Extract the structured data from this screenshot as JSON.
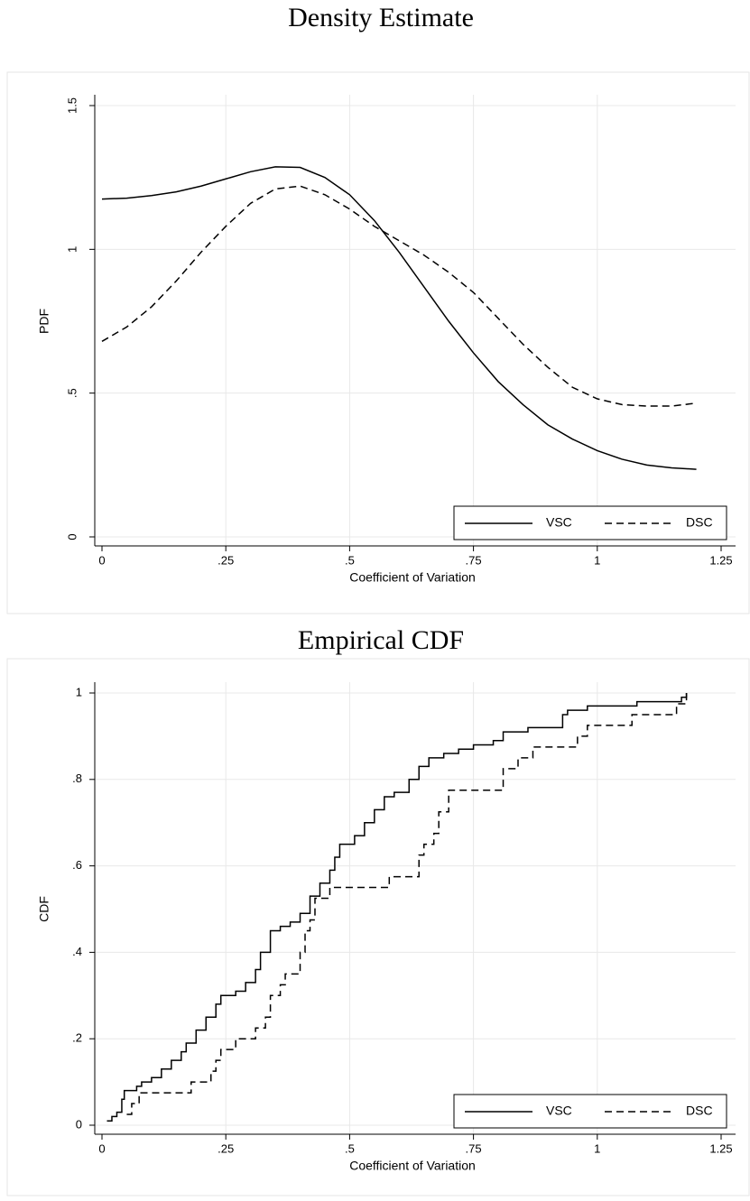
{
  "chart_data": [
    {
      "type": "line",
      "title": "Density Estimate",
      "x_label": "Coefficient of Variation",
      "y_label": "PDF",
      "x": [
        0,
        0.05,
        0.1,
        0.15,
        0.2,
        0.25,
        0.3,
        0.35,
        0.4,
        0.45,
        0.5,
        0.55,
        0.6,
        0.65,
        0.7,
        0.75,
        0.8,
        0.85,
        0.9,
        0.95,
        1.0,
        1.05,
        1.1,
        1.15,
        1.2
      ],
      "series": [
        {
          "name": "VSC",
          "color": "#000000",
          "line_style": "solid",
          "values": [
            1.175,
            1.178,
            1.187,
            1.2,
            1.22,
            1.245,
            1.27,
            1.287,
            1.285,
            1.25,
            1.19,
            1.1,
            0.99,
            0.87,
            0.75,
            0.64,
            0.54,
            0.46,
            0.39,
            0.34,
            0.3,
            0.27,
            0.25,
            0.24,
            0.235
          ]
        },
        {
          "name": "DSC",
          "color": "#000000",
          "line_style": "dashed",
          "values": [
            0.68,
            0.73,
            0.8,
            0.89,
            0.99,
            1.08,
            1.16,
            1.21,
            1.22,
            1.19,
            1.14,
            1.08,
            1.03,
            0.98,
            0.92,
            0.85,
            0.76,
            0.67,
            0.59,
            0.52,
            0.48,
            0.46,
            0.455,
            0.455,
            0.465
          ]
        }
      ],
      "xlim": [
        0,
        1.25
      ],
      "ylim": [
        0,
        1.5
      ],
      "xticks": [
        0,
        {
          "value": 0.25,
          "label": ".25"
        },
        {
          "value": 0.5,
          "label": ".5"
        },
        {
          "value": 0.75,
          "label": ".75"
        },
        1,
        1.25
      ],
      "yticks": [
        0,
        {
          "value": 0.5,
          "label": ".5"
        },
        1,
        1.5
      ],
      "grid": true,
      "legend": "bottom-right"
    },
    {
      "type": "step",
      "title": "Empirical CDF",
      "x_label": "Coefficient of Variation",
      "y_label": "CDF",
      "series": [
        {
          "name": "VSC",
          "color": "#000000",
          "line_style": "solid",
          "x": [
            0.01,
            0.02,
            0.03,
            0.04,
            0.045,
            0.07,
            0.08,
            0.1,
            0.12,
            0.14,
            0.16,
            0.17,
            0.19,
            0.21,
            0.23,
            0.24,
            0.27,
            0.29,
            0.31,
            0.32,
            0.34,
            0.36,
            0.38,
            0.4,
            0.42,
            0.44,
            0.46,
            0.47,
            0.48,
            0.51,
            0.53,
            0.55,
            0.57,
            0.59,
            0.62,
            0.64,
            0.66,
            0.69,
            0.72,
            0.75,
            0.79,
            0.81,
            0.86,
            0.93,
            0.94,
            0.98,
            1.08,
            1.17,
            1.18
          ],
          "values": [
            0.01,
            0.02,
            0.03,
            0.06,
            0.08,
            0.09,
            0.1,
            0.11,
            0.13,
            0.15,
            0.17,
            0.19,
            0.22,
            0.25,
            0.28,
            0.3,
            0.31,
            0.33,
            0.36,
            0.4,
            0.45,
            0.46,
            0.47,
            0.49,
            0.53,
            0.56,
            0.59,
            0.62,
            0.65,
            0.67,
            0.7,
            0.73,
            0.76,
            0.77,
            0.8,
            0.83,
            0.85,
            0.86,
            0.87,
            0.88,
            0.89,
            0.91,
            0.92,
            0.95,
            0.96,
            0.97,
            0.98,
            0.99,
            1.0
          ]
        },
        {
          "name": "DSC",
          "color": "#000000",
          "line_style": "dashed",
          "x": [
            0.05,
            0.06,
            0.075,
            0.18,
            0.22,
            0.23,
            0.24,
            0.27,
            0.31,
            0.33,
            0.34,
            0.36,
            0.37,
            0.4,
            0.41,
            0.42,
            0.43,
            0.46,
            0.58,
            0.64,
            0.65,
            0.67,
            0.68,
            0.7,
            0.81,
            0.84,
            0.87,
            0.96,
            0.98,
            1.07,
            1.16,
            1.18
          ],
          "values": [
            0.025,
            0.05,
            0.075,
            0.1,
            0.125,
            0.15,
            0.175,
            0.2,
            0.225,
            0.25,
            0.3,
            0.325,
            0.35,
            0.4,
            0.45,
            0.475,
            0.525,
            0.55,
            0.575,
            0.625,
            0.65,
            0.675,
            0.725,
            0.775,
            0.825,
            0.85,
            0.875,
            0.9,
            0.925,
            0.95,
            0.975,
            1.0
          ]
        }
      ],
      "xlim": [
        0,
        1.25
      ],
      "ylim": [
        0,
        1
      ],
      "xticks": [
        0,
        {
          "value": 0.25,
          "label": ".25"
        },
        {
          "value": 0.5,
          "label": ".5"
        },
        {
          "value": 0.75,
          "label": ".75"
        },
        1,
        1.25
      ],
      "yticks": [
        0,
        {
          "value": 0.2,
          "label": ".2"
        },
        {
          "value": 0.4,
          "label": ".4"
        },
        {
          "value": 0.6,
          "label": ".6"
        },
        {
          "value": 0.8,
          "label": ".8"
        },
        1
      ],
      "grid": true,
      "legend": "bottom-right"
    }
  ]
}
